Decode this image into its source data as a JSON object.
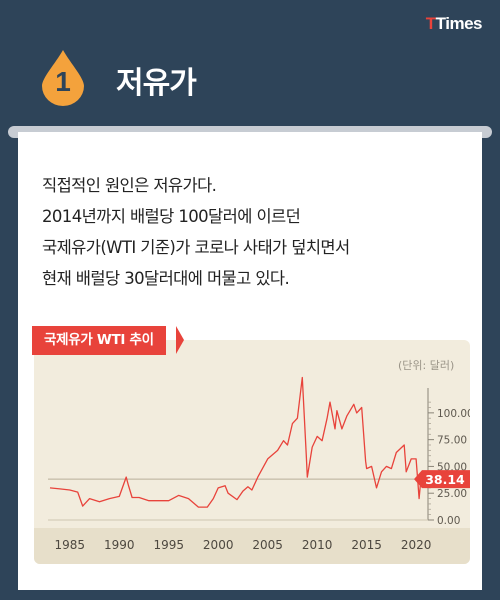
{
  "brand": {
    "t": "T",
    "rest": "Times"
  },
  "section": {
    "number": "1",
    "title": "저유가"
  },
  "description": [
    "직접적인 원인은 저유가다.",
    "2014년까지 배럴당 100달러에 이르던",
    "국제유가(WTI 기준)가 코로나 사태가 덮치면서",
    "현재 배럴당 30달러대에 머물고 있다."
  ],
  "chart_label": "국제유가 WTI 추이",
  "unit_label": "(단위: 달러)",
  "colors": {
    "background": "#2e4459",
    "accent": "#e8433b",
    "drop": "#f4a23c",
    "chart_bg": "#f2ecdd"
  },
  "chart_data": {
    "type": "line",
    "title": "국제유가 WTI 추이",
    "unit": "(단위: 달러)",
    "xlabel": "",
    "ylabel": "",
    "xlim": [
      1983,
      2021
    ],
    "ylim": [
      0,
      140
    ],
    "x_ticks": [
      "1985",
      "1990",
      "1995",
      "2000",
      "2005",
      "2010",
      "2015",
      "2020"
    ],
    "y_ticks": [
      "0.00",
      "25.00",
      "50.00",
      "75.00",
      "100.00"
    ],
    "current_value": "38.14",
    "reference_line": 38.14,
    "grid": false,
    "series": [
      {
        "x": [
          1983,
          1984,
          1985,
          1985.8,
          1986.3,
          1987,
          1988,
          1989,
          1990,
          1990.7,
          1990.9,
          1991.3,
          1992,
          1993,
          1994,
          1995,
          1996,
          1997,
          1998,
          1998.9,
          1999.5,
          2000,
          2000.7,
          2001,
          2001.9,
          2002.5,
          2003,
          2003.4,
          2004,
          2005,
          2006,
          2006.6,
          2007,
          2007.5,
          2008,
          2008.5,
          2008.9,
          2009,
          2009.5,
          2010,
          2010.5,
          2011,
          2011.3,
          2011.8,
          2012,
          2012.5,
          2013,
          2013.7,
          2014,
          2014.5,
          2014.9,
          2015,
          2015.5,
          2016,
          2016.5,
          2017,
          2017.5,
          2018,
          2018.8,
          2019,
          2019.5,
          2020,
          2020.3,
          2020.5,
          2020.7
        ],
        "values": [
          30,
          29,
          28,
          26,
          13,
          20,
          17,
          20,
          22,
          40,
          33,
          21,
          21,
          18,
          18,
          18,
          23,
          20,
          12,
          12,
          20,
          30,
          32,
          25,
          19,
          27,
          31,
          28,
          40,
          57,
          65,
          74,
          70,
          90,
          95,
          133,
          60,
          40,
          68,
          78,
          74,
          95,
          110,
          85,
          102,
          85,
          97,
          108,
          100,
          105,
          55,
          48,
          50,
          30,
          45,
          50,
          48,
          63,
          70,
          45,
          57,
          57,
          20,
          40,
          38.14
        ]
      }
    ]
  }
}
